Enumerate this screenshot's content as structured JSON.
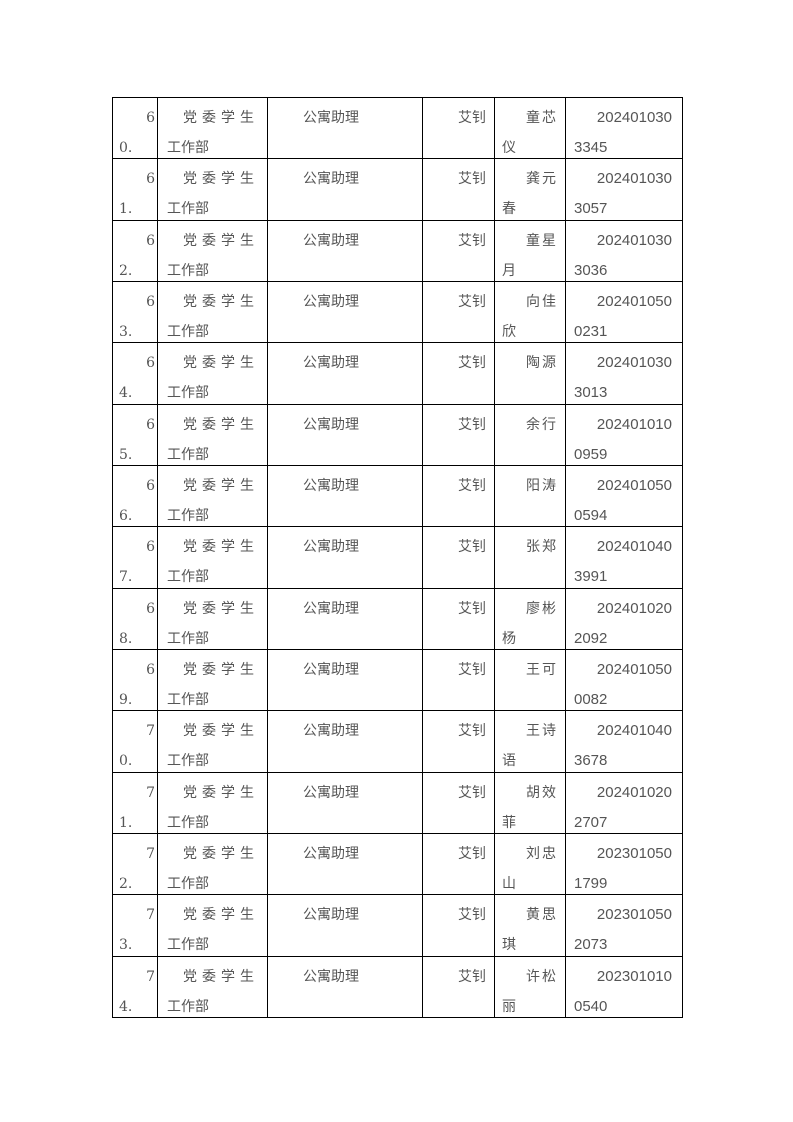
{
  "table": {
    "rows": [
      {
        "no": [
          "6",
          "0."
        ],
        "dept": [
          "党委学生",
          "工作部"
        ],
        "position": "公寓助理",
        "teacher": "艾钊",
        "name": [
          "童芯",
          "仪"
        ],
        "id": [
          "202401030",
          "3345"
        ]
      },
      {
        "no": [
          "6",
          "1."
        ],
        "dept": [
          "党委学生",
          "工作部"
        ],
        "position": "公寓助理",
        "teacher": "艾钊",
        "name": [
          "龚元",
          "春"
        ],
        "id": [
          "202401030",
          "3057"
        ]
      },
      {
        "no": [
          "6",
          "2."
        ],
        "dept": [
          "党委学生",
          "工作部"
        ],
        "position": "公寓助理",
        "teacher": "艾钊",
        "name": [
          "童星",
          "月"
        ],
        "id": [
          "202401030",
          "3036"
        ]
      },
      {
        "no": [
          "6",
          "3."
        ],
        "dept": [
          "党委学生",
          "工作部"
        ],
        "position": "公寓助理",
        "teacher": "艾钊",
        "name": [
          "向佳",
          "欣"
        ],
        "id": [
          "202401050",
          "0231"
        ]
      },
      {
        "no": [
          "6",
          "4."
        ],
        "dept": [
          "党委学生",
          "工作部"
        ],
        "position": "公寓助理",
        "teacher": "艾钊",
        "name": [
          "陶源",
          ""
        ],
        "id": [
          "202401030",
          "3013"
        ]
      },
      {
        "no": [
          "6",
          "5."
        ],
        "dept": [
          "党委学生",
          "工作部"
        ],
        "position": "公寓助理",
        "teacher": "艾钊",
        "name": [
          "余行",
          ""
        ],
        "id": [
          "202401010",
          "0959"
        ]
      },
      {
        "no": [
          "6",
          "6."
        ],
        "dept": [
          "党委学生",
          "工作部"
        ],
        "position": "公寓助理",
        "teacher": "艾钊",
        "name": [
          "阳涛",
          ""
        ],
        "id": [
          "202401050",
          "0594"
        ]
      },
      {
        "no": [
          "6",
          "7."
        ],
        "dept": [
          "党委学生",
          "工作部"
        ],
        "position": "公寓助理",
        "teacher": "艾钊",
        "name": [
          "张郑",
          ""
        ],
        "id": [
          "202401040",
          "3991"
        ]
      },
      {
        "no": [
          "6",
          "8."
        ],
        "dept": [
          "党委学生",
          "工作部"
        ],
        "position": "公寓助理",
        "teacher": "艾钊",
        "name": [
          "廖彬",
          "杨"
        ],
        "id": [
          "202401020",
          "2092"
        ]
      },
      {
        "no": [
          "6",
          "9."
        ],
        "dept": [
          "党委学生",
          "工作部"
        ],
        "position": "公寓助理",
        "teacher": "艾钊",
        "name": [
          "王可",
          ""
        ],
        "id": [
          "202401050",
          "0082"
        ]
      },
      {
        "no": [
          "7",
          "0."
        ],
        "dept": [
          "党委学生",
          "工作部"
        ],
        "position": "公寓助理",
        "teacher": "艾钊",
        "name": [
          "王诗",
          "语"
        ],
        "id": [
          "202401040",
          "3678"
        ]
      },
      {
        "no": [
          "7",
          "1."
        ],
        "dept": [
          "党委学生",
          "工作部"
        ],
        "position": "公寓助理",
        "teacher": "艾钊",
        "name": [
          "胡效",
          "菲"
        ],
        "id": [
          "202401020",
          "2707"
        ]
      },
      {
        "no": [
          "7",
          "2."
        ],
        "dept": [
          "党委学生",
          "工作部"
        ],
        "position": "公寓助理",
        "teacher": "艾钊",
        "name": [
          "刘忠",
          "山"
        ],
        "id": [
          "202301050",
          "1799"
        ]
      },
      {
        "no": [
          "7",
          "3."
        ],
        "dept": [
          "党委学生",
          "工作部"
        ],
        "position": "公寓助理",
        "teacher": "艾钊",
        "name": [
          "黄思",
          "琪"
        ],
        "id": [
          "202301050",
          "2073"
        ]
      },
      {
        "no": [
          "7",
          "4."
        ],
        "dept": [
          "党委学生",
          "工作部"
        ],
        "position": "公寓助理",
        "teacher": "艾钊",
        "name": [
          "许松",
          "丽"
        ],
        "id": [
          "202301010",
          "0540"
        ]
      }
    ]
  }
}
